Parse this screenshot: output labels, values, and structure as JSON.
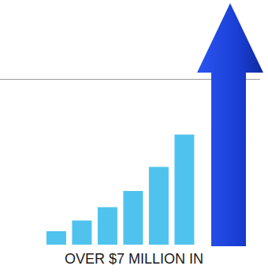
{
  "chart_data": {
    "type": "bar",
    "categories": [
      null,
      null,
      null,
      null,
      null,
      null
    ],
    "values": [
      10,
      18,
      28,
      40,
      58,
      82
    ],
    "color": "#4fc3ee",
    "ylim": [
      0,
      100
    ],
    "tick_labels": false,
    "grid": false,
    "annotation": "OVER $7 MILLION IN"
  }
}
